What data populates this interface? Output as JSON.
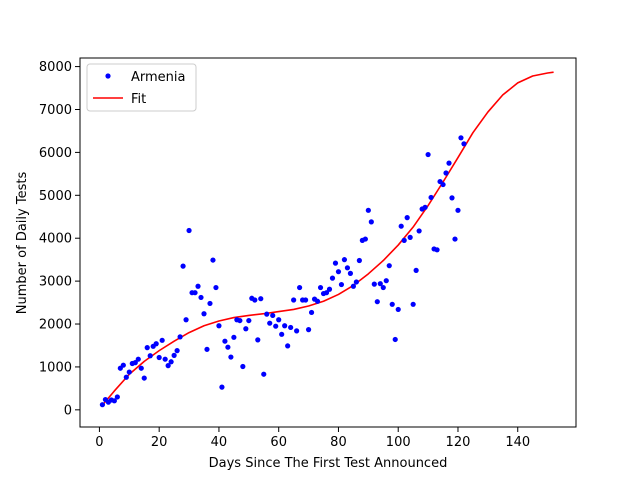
{
  "chart_data": {
    "type": "scatter",
    "xlabel": "Days Since The First Test Announced",
    "ylabel": "Number of Daily Tests",
    "xlim": [
      -6.5,
      159.5
    ],
    "ylim": [
      -400,
      8200
    ],
    "x_ticks": [
      0,
      20,
      40,
      60,
      80,
      100,
      120,
      140
    ],
    "y_ticks": [
      0,
      1000,
      2000,
      3000,
      4000,
      5000,
      6000,
      7000,
      8000
    ],
    "grid": false,
    "legend_position": "top-left",
    "series": [
      {
        "name": "Armenia",
        "kind": "scatter",
        "color": "#0000ff",
        "x": [
          1,
          2,
          3,
          4,
          5,
          6,
          7,
          8,
          9,
          10,
          11,
          12,
          13,
          14,
          15,
          16,
          17,
          18,
          19,
          20,
          21,
          22,
          23,
          24,
          25,
          26,
          27,
          28,
          29,
          30,
          31,
          32,
          33,
          34,
          35,
          36,
          37,
          38,
          39,
          40,
          41,
          42,
          43,
          44,
          45,
          46,
          47,
          48,
          49,
          50,
          51,
          52,
          53,
          54,
          55,
          56,
          57,
          58,
          59,
          60,
          61,
          62,
          63,
          64,
          65,
          66,
          67,
          68,
          69,
          70,
          71,
          72,
          73,
          74,
          75,
          76,
          77,
          78,
          79,
          80,
          81,
          82,
          83,
          84,
          85,
          86,
          87,
          88,
          89,
          90,
          91,
          92,
          93,
          94,
          95,
          96,
          97,
          98,
          99,
          100,
          101,
          102,
          103,
          104,
          105,
          106,
          107,
          108,
          109,
          110,
          111,
          112,
          113,
          114,
          115,
          116,
          117,
          118,
          119,
          120,
          121,
          122
        ],
        "y": [
          120,
          240,
          180,
          230,
          210,
          300,
          970,
          1040,
          760,
          880,
          1080,
          1100,
          1180,
          970,
          740,
          1450,
          1260,
          1480,
          1540,
          1220,
          1620,
          1180,
          1030,
          1120,
          1270,
          1380,
          1700,
          3350,
          2100,
          4180,
          2730,
          2730,
          2880,
          2620,
          2240,
          1410,
          2480,
          3490,
          2850,
          1960,
          530,
          1600,
          1460,
          1230,
          1690,
          2100,
          2080,
          1010,
          1890,
          2080,
          2600,
          2560,
          1630,
          2590,
          830,
          2230,
          2020,
          2200,
          1950,
          2100,
          1760,
          1960,
          1490,
          1920,
          2560,
          1840,
          2850,
          2560,
          2560,
          1870,
          2270,
          2580,
          2530,
          2850,
          2710,
          2730,
          2810,
          3070,
          3420,
          3220,
          2920,
          3500,
          3310,
          3180,
          2880,
          2980,
          3480,
          3950,
          3980,
          4650,
          4380,
          2930,
          2520,
          2940,
          2850,
          3010,
          3360,
          2460,
          1640,
          2340,
          4280,
          3950,
          4480,
          4020,
          2460,
          3250,
          4170,
          4680,
          4720,
          5950,
          4950,
          3750,
          3730,
          5320,
          5250,
          5520,
          5750,
          4940,
          3980,
          4650,
          6340,
          6200
        ]
      },
      {
        "name": "Fit",
        "kind": "line",
        "color": "#ff0000",
        "x": [
          1,
          5,
          10,
          15,
          20,
          25,
          30,
          35,
          40,
          45,
          50,
          55,
          60,
          65,
          70,
          75,
          80,
          85,
          90,
          95,
          100,
          105,
          110,
          115,
          120,
          125,
          130,
          135,
          140,
          145,
          150,
          152
        ],
        "y": [
          110,
          440,
          830,
          1130,
          1380,
          1600,
          1800,
          1960,
          2070,
          2150,
          2200,
          2240,
          2290,
          2340,
          2420,
          2530,
          2690,
          2900,
          3170,
          3480,
          3840,
          4260,
          4760,
          5310,
          5880,
          6460,
          6940,
          7340,
          7620,
          7780,
          7850,
          7870
        ]
      }
    ]
  }
}
